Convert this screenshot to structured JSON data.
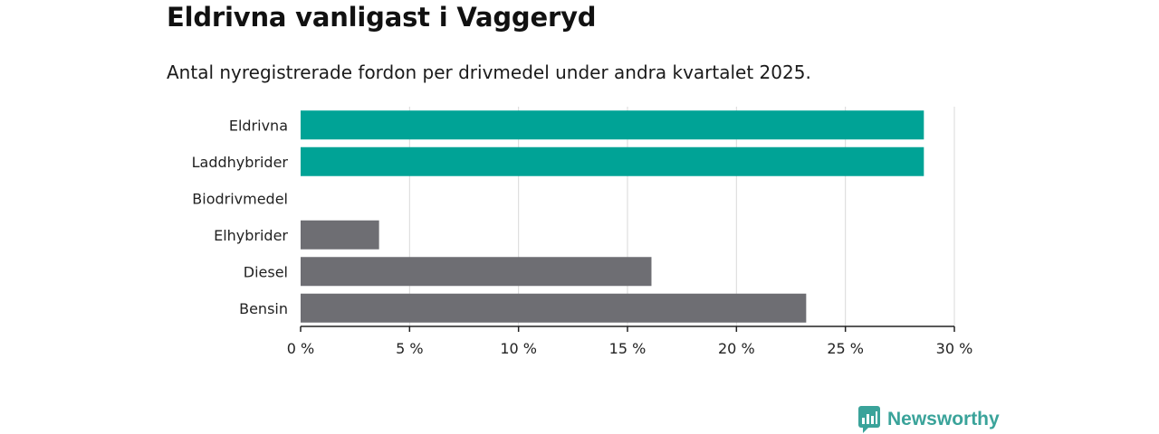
{
  "title": "Eldrivna vanligast i Vaggeryd",
  "subtitle": "Antal nyregistrerade fordon per drivmedel under andra kvartalet 2025.",
  "brand": {
    "name": "Newsworthy",
    "icon": "newsworthy-logo-icon",
    "color": "#3aa39a"
  },
  "colors": {
    "highlight": "#00a396",
    "default": "#6e6e73",
    "grid": "#d9d9d9",
    "axis": "#222222"
  },
  "chart_data": {
    "type": "bar",
    "orientation": "horizontal",
    "title": "Eldrivna vanligast i Vaggeryd",
    "subtitle": "Antal nyregistrerade fordon per drivmedel under andra kvartalet 2025.",
    "categories": [
      "Eldrivna",
      "Laddhybrider",
      "Biodrivmedel",
      "Elhybrider",
      "Diesel",
      "Bensin"
    ],
    "values": [
      28.6,
      28.6,
      0,
      3.6,
      16.1,
      23.2
    ],
    "highlight": [
      true,
      true,
      false,
      false,
      false,
      false
    ],
    "xlim": [
      0,
      30
    ],
    "xticks": [
      0,
      5,
      10,
      15,
      20,
      25,
      30
    ],
    "tick_labels": [
      "0 %",
      "5 %",
      "10 %",
      "15 %",
      "20 %",
      "25 %",
      "30 %"
    ],
    "xlabel": "",
    "ylabel": "",
    "grid": true,
    "legend": "none"
  }
}
